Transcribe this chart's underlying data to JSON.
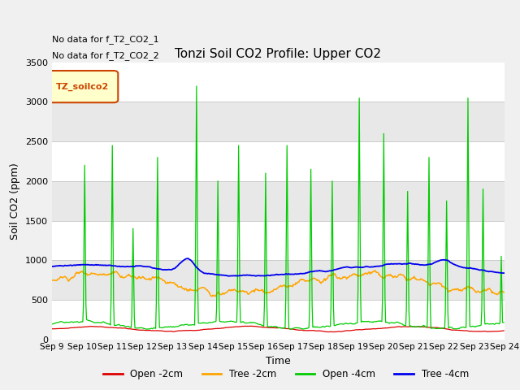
{
  "title": "Tonzi Soil CO2 Profile: Upper CO2",
  "xlabel": "Time",
  "ylabel": "Soil CO2 (ppm)",
  "ylim": [
    0,
    3500
  ],
  "annotations": [
    "No data for f_T2_CO2_1",
    "No data for f_T2_CO2_2"
  ],
  "legend_box_label": "TZ_soilco2",
  "legend_box_color": "#cc4400",
  "legend_box_bg": "#ffffcc",
  "series": {
    "open_2cm": {
      "label": "Open -2cm",
      "color": "#dd0000"
    },
    "tree_2cm": {
      "label": "Tree -2cm",
      "color": "#ffa500"
    },
    "open_4cm": {
      "label": "Open -4cm",
      "color": "#00cc00"
    },
    "tree_4cm": {
      "label": "Tree -4cm",
      "color": "#0000ee"
    }
  },
  "band_colors": [
    "#ffffff",
    "#e8e8e8"
  ],
  "n_days": 15,
  "pts_per_day": 48,
  "seed": 42,
  "figsize": [
    6.4,
    4.8
  ],
  "dpi": 100
}
